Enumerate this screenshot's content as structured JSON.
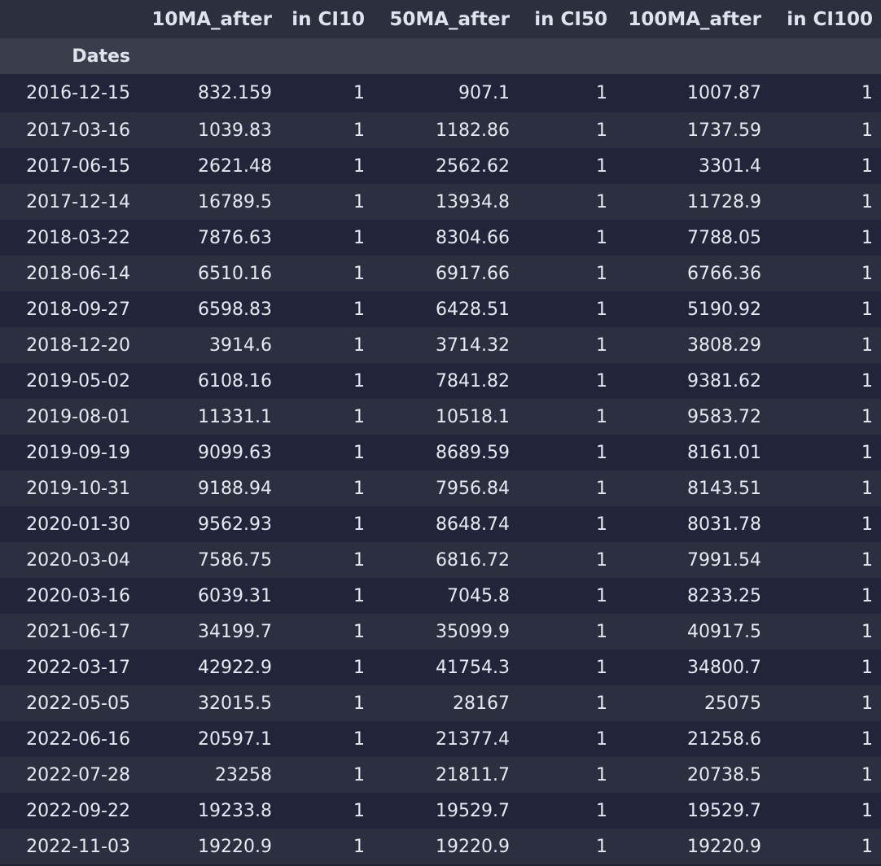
{
  "table": {
    "index_name": "Dates",
    "columns": [
      "10MA_after",
      "in CI10",
      "50MA_after",
      "in CI50",
      "100MA_after",
      "in CI100"
    ],
    "rows": [
      {
        "date": "2016-12-15",
        "values": [
          "832.159",
          "1",
          "907.1",
          "1",
          "1007.87",
          "1"
        ]
      },
      {
        "date": "2017-03-16",
        "values": [
          "1039.83",
          "1",
          "1182.86",
          "1",
          "1737.59",
          "1"
        ]
      },
      {
        "date": "2017-06-15",
        "values": [
          "2621.48",
          "1",
          "2562.62",
          "1",
          "3301.4",
          "1"
        ]
      },
      {
        "date": "2017-12-14",
        "values": [
          "16789.5",
          "1",
          "13934.8",
          "1",
          "11728.9",
          "1"
        ]
      },
      {
        "date": "2018-03-22",
        "values": [
          "7876.63",
          "1",
          "8304.66",
          "1",
          "7788.05",
          "1"
        ]
      },
      {
        "date": "2018-06-14",
        "values": [
          "6510.16",
          "1",
          "6917.66",
          "1",
          "6766.36",
          "1"
        ]
      },
      {
        "date": "2018-09-27",
        "values": [
          "6598.83",
          "1",
          "6428.51",
          "1",
          "5190.92",
          "1"
        ]
      },
      {
        "date": "2018-12-20",
        "values": [
          "3914.6",
          "1",
          "3714.32",
          "1",
          "3808.29",
          "1"
        ]
      },
      {
        "date": "2019-05-02",
        "values": [
          "6108.16",
          "1",
          "7841.82",
          "1",
          "9381.62",
          "1"
        ]
      },
      {
        "date": "2019-08-01",
        "values": [
          "11331.1",
          "1",
          "10518.1",
          "1",
          "9583.72",
          "1"
        ]
      },
      {
        "date": "2019-09-19",
        "values": [
          "9099.63",
          "1",
          "8689.59",
          "1",
          "8161.01",
          "1"
        ]
      },
      {
        "date": "2019-10-31",
        "values": [
          "9188.94",
          "1",
          "7956.84",
          "1",
          "8143.51",
          "1"
        ]
      },
      {
        "date": "2020-01-30",
        "values": [
          "9562.93",
          "1",
          "8648.74",
          "1",
          "8031.78",
          "1"
        ]
      },
      {
        "date": "2020-03-04",
        "values": [
          "7586.75",
          "1",
          "6816.72",
          "1",
          "7991.54",
          "1"
        ]
      },
      {
        "date": "2020-03-16",
        "values": [
          "6039.31",
          "1",
          "7045.8",
          "1",
          "8233.25",
          "1"
        ]
      },
      {
        "date": "2021-06-17",
        "values": [
          "34199.7",
          "1",
          "35099.9",
          "1",
          "40917.5",
          "1"
        ]
      },
      {
        "date": "2022-03-17",
        "values": [
          "42922.9",
          "1",
          "41754.3",
          "1",
          "34800.7",
          "1"
        ]
      },
      {
        "date": "2022-05-05",
        "values": [
          "32015.5",
          "1",
          "28167",
          "1",
          "25075",
          "1"
        ]
      },
      {
        "date": "2022-06-16",
        "values": [
          "20597.1",
          "1",
          "21377.4",
          "1",
          "21258.6",
          "1"
        ]
      },
      {
        "date": "2022-07-28",
        "values": [
          "23258",
          "1",
          "21811.7",
          "1",
          "20738.5",
          "1"
        ]
      },
      {
        "date": "2022-09-22",
        "values": [
          "19233.8",
          "1",
          "19529.7",
          "1",
          "19529.7",
          "1"
        ]
      },
      {
        "date": "2022-11-03",
        "values": [
          "19220.9",
          "1",
          "19220.9",
          "1",
          "19220.9",
          "1"
        ]
      }
    ]
  }
}
